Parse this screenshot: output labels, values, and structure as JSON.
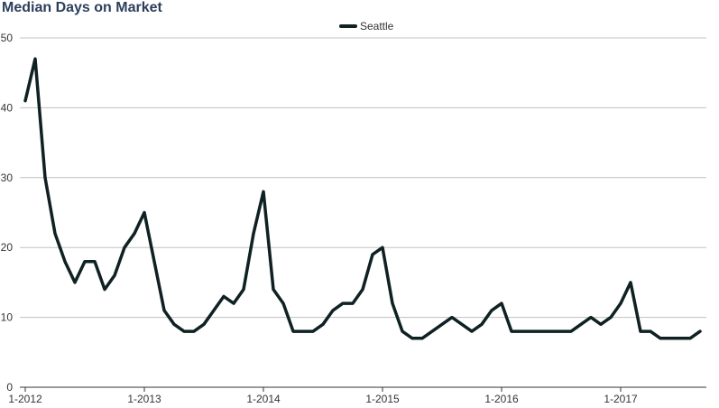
{
  "chart_data": {
    "type": "line",
    "title": "Median Days on Market",
    "xlabel": "",
    "ylabel": "",
    "ylim": [
      0,
      50
    ],
    "yticks": [
      0,
      10,
      20,
      30,
      40,
      50
    ],
    "x_tick_labels": [
      "1-2012",
      "1-2013",
      "1-2014",
      "1-2015",
      "1-2016",
      "1-2017"
    ],
    "x": [
      "1-2012",
      "2-2012",
      "3-2012",
      "4-2012",
      "5-2012",
      "6-2012",
      "7-2012",
      "8-2012",
      "9-2012",
      "10-2012",
      "11-2012",
      "12-2012",
      "1-2013",
      "2-2013",
      "3-2013",
      "4-2013",
      "5-2013",
      "6-2013",
      "7-2013",
      "8-2013",
      "9-2013",
      "10-2013",
      "11-2013",
      "12-2013",
      "1-2014",
      "2-2014",
      "3-2014",
      "4-2014",
      "5-2014",
      "6-2014",
      "7-2014",
      "8-2014",
      "9-2014",
      "10-2014",
      "11-2014",
      "12-2014",
      "1-2015",
      "2-2015",
      "3-2015",
      "4-2015",
      "5-2015",
      "6-2015",
      "7-2015",
      "8-2015",
      "9-2015",
      "10-2015",
      "11-2015",
      "12-2015",
      "1-2016",
      "2-2016",
      "3-2016",
      "4-2016",
      "5-2016",
      "6-2016",
      "7-2016",
      "8-2016",
      "9-2016",
      "10-2016",
      "11-2016",
      "12-2016",
      "1-2017",
      "2-2017",
      "3-2017",
      "4-2017",
      "5-2017",
      "6-2017",
      "7-2017",
      "8-2017",
      "9-2017"
    ],
    "series": [
      {
        "name": "Seattle",
        "color": "#0f2123",
        "values": [
          41,
          47,
          30,
          22,
          18,
          15,
          18,
          18,
          14,
          16,
          20,
          22,
          25,
          18,
          11,
          9,
          8,
          8,
          9,
          11,
          13,
          12,
          14,
          22,
          28,
          14,
          12,
          8,
          8,
          8,
          9,
          11,
          12,
          12,
          14,
          19,
          20,
          12,
          8,
          7,
          7,
          8,
          9,
          10,
          9,
          8,
          9,
          11,
          12,
          8,
          8,
          8,
          8,
          8,
          8,
          8,
          9,
          10,
          9,
          10,
          12,
          15,
          8,
          8,
          7,
          7,
          7,
          7,
          8
        ]
      }
    ],
    "legend_position": "top-center",
    "grid": true
  }
}
